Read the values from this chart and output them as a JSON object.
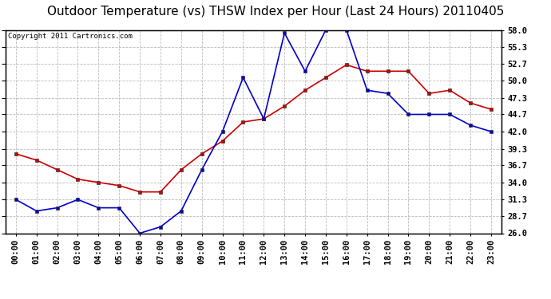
{
  "title": "Outdoor Temperature (vs) THSW Index per Hour (Last 24 Hours) 20110405",
  "copyright": "Copyright 2011 Cartronics.com",
  "hours": [
    "00:00",
    "01:00",
    "02:00",
    "03:00",
    "04:00",
    "05:00",
    "06:00",
    "07:00",
    "08:00",
    "09:00",
    "10:00",
    "11:00",
    "12:00",
    "13:00",
    "14:00",
    "15:00",
    "16:00",
    "17:00",
    "18:00",
    "19:00",
    "20:00",
    "21:00",
    "22:00",
    "23:00"
  ],
  "temp": [
    38.5,
    37.5,
    36.0,
    34.5,
    34.0,
    33.5,
    32.5,
    32.5,
    36.0,
    38.5,
    40.5,
    43.5,
    44.0,
    46.0,
    48.5,
    50.5,
    52.5,
    51.5,
    51.5,
    51.5,
    48.0,
    48.5,
    46.5,
    45.5
  ],
  "thsw": [
    31.3,
    29.5,
    30.0,
    31.3,
    30.0,
    30.0,
    26.0,
    27.0,
    29.5,
    36.0,
    42.0,
    50.5,
    44.0,
    57.5,
    51.5,
    58.0,
    58.0,
    48.5,
    48.0,
    44.7,
    44.7,
    44.7,
    43.0,
    42.0
  ],
  "temp_color": "#cc0000",
  "thsw_color": "#0000cc",
  "markersize": 3,
  "linewidth": 1.2,
  "ylim": [
    26.0,
    58.0
  ],
  "yticks": [
    26.0,
    28.7,
    31.3,
    34.0,
    36.7,
    39.3,
    42.0,
    44.7,
    47.3,
    50.0,
    52.7,
    55.3,
    58.0
  ],
  "ytick_labels": [
    "26.0",
    "28.7",
    "31.3",
    "34.0",
    "36.7",
    "39.3",
    "42.0",
    "44.7",
    "47.3",
    "50.0",
    "52.7",
    "55.3",
    "58.0"
  ],
  "grid_color": "#bbbbbb",
  "background_color": "#ffffff",
  "title_fontsize": 11,
  "tick_fontsize": 7.5,
  "copyright_fontsize": 6.5
}
